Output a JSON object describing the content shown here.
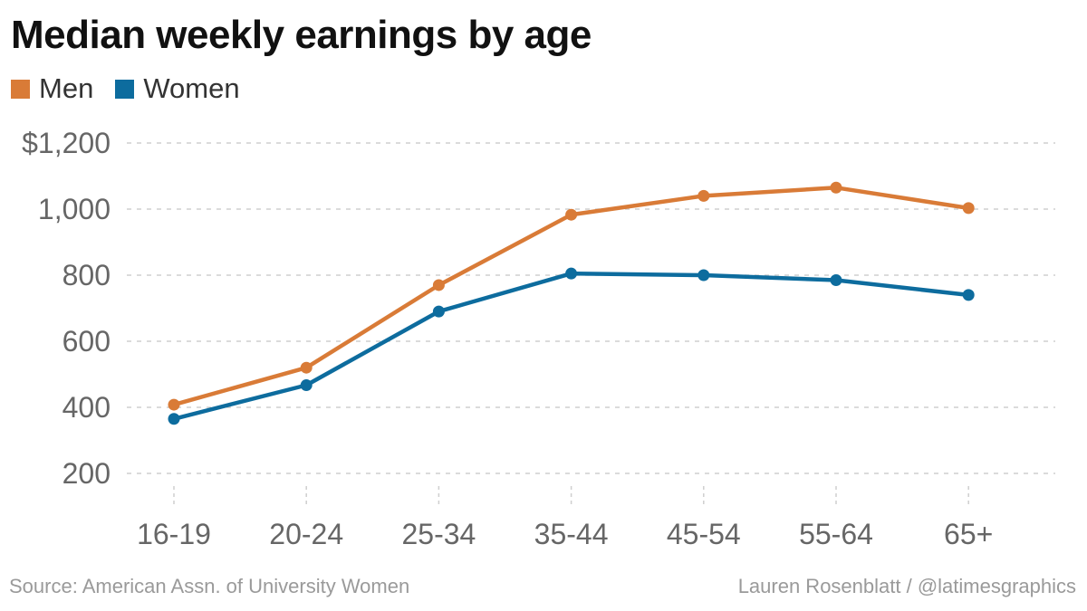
{
  "title": "Median weekly earnings by age",
  "source": "Source: American Assn. of University Women",
  "credit": "Lauren Rosenblatt / @latimesgraphics",
  "colors": {
    "men": "#d97b37",
    "women": "#0d6c9e",
    "grid": "#cfcfcf",
    "tick_text": "#666666"
  },
  "chart_data": {
    "type": "line",
    "title": "Median weekly earnings by age",
    "xlabel": "",
    "ylabel": "",
    "categories": [
      "16-19",
      "20-24",
      "25-34",
      "35-44",
      "45-54",
      "55-64",
      "65+"
    ],
    "series": [
      {
        "name": "Men",
        "color": "#d97b37",
        "values": [
          408,
          520,
          770,
          983,
          1040,
          1065,
          1003
        ]
      },
      {
        "name": "Women",
        "color": "#0d6c9e",
        "values": [
          365,
          467,
          690,
          805,
          800,
          785,
          740
        ]
      }
    ],
    "ylim": [
      200,
      1200
    ],
    "yticks": [
      200,
      400,
      600,
      800,
      1000,
      1200
    ],
    "ytick_labels": [
      "200",
      "400",
      "600",
      "800",
      "1,000",
      "$1,200"
    ],
    "grid": true,
    "legend_position": "top-left"
  }
}
